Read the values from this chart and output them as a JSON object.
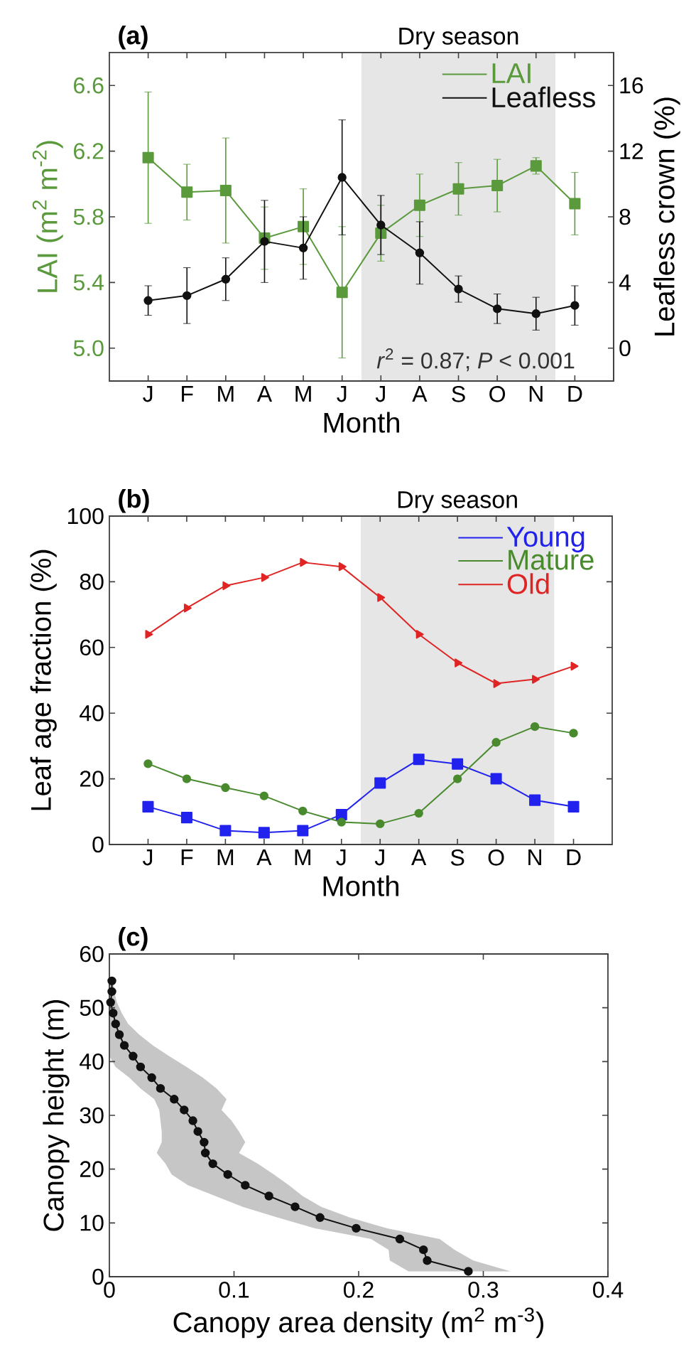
{
  "chart_data": [
    {
      "type": "line",
      "title": "(a)",
      "xlabel": "Month",
      "ylabel": "LAI (m$^{2}$ m$^{-2}$)",
      "y2label": "Leafless crown (%)",
      "categories": [
        "J",
        "F",
        "M",
        "A",
        "M",
        "J",
        "J",
        "A",
        "S",
        "O",
        "N",
        "D"
      ],
      "ylim": [
        4.8,
        6.8
      ],
      "yticks": [
        {
          "value": 5,
          "label": "5.0"
        },
        5.4,
        5.8,
        6.2,
        6.6
      ],
      "y2lim": [
        -2,
        18
      ],
      "y2ticks": [
        0,
        4,
        8,
        12,
        16
      ],
      "legend": "top right",
      "series": [
        {
          "name": "LAI",
          "color": "#5b9a3c",
          "marker": "square",
          "values": [
            6.16,
            5.95,
            5.96,
            5.67,
            5.74,
            5.34,
            5.7,
            5.87,
            5.97,
            5.99,
            6.11,
            5.88
          ],
          "errors": [
            0.4,
            0.17,
            0.32,
            0.19,
            0.23,
            0.4,
            0.17,
            0.19,
            0.16,
            0.16,
            0.05,
            0.19
          ]
        },
        {
          "name": "Leafless",
          "color": "#111111",
          "marker": "circle",
          "axis": "y2",
          "values": [
            2.9,
            3.2,
            4.2,
            6.5,
            6.1,
            10.4,
            7.5,
            5.8,
            3.6,
            2.4,
            2.1,
            2.6
          ],
          "errors": [
            0.9,
            1.7,
            1.3,
            2.5,
            1.9,
            3.5,
            1.8,
            1.9,
            0.8,
            0.9,
            1.0,
            1.2
          ]
        }
      ],
      "annotations": [
        "Dry season",
        "*r*$^{2}$ = 0.87; *P* < 0.001"
      ]
    },
    {
      "type": "line",
      "title": "(b)",
      "xlabel": "Month",
      "ylabel": "Leaf age fraction (%)",
      "categories": [
        "J",
        "F",
        "M",
        "A",
        "M",
        "J",
        "J",
        "A",
        "S",
        "O",
        "N",
        "D"
      ],
      "ylim": [
        0,
        100
      ],
      "yticks": [
        0,
        20,
        40,
        60,
        80,
        100
      ],
      "legend": "top right",
      "series": [
        {
          "name": "Young",
          "color": "#2222ee",
          "marker": "square",
          "values": [
            11.5,
            8.2,
            4.2,
            3.6,
            4.2,
            9.1,
            18.7,
            25.9,
            24.5,
            20.0,
            13.5,
            11.5
          ]
        },
        {
          "name": "Mature",
          "color": "#4a8a2e",
          "marker": "circle",
          "values": [
            24.6,
            20.0,
            17.3,
            14.8,
            10.2,
            6.8,
            6.3,
            9.5,
            20.0,
            31.1,
            35.9,
            33.9
          ]
        },
        {
          "name": "Old",
          "color": "#e02424",
          "marker": "triangle",
          "values": [
            64.0,
            72.0,
            78.8,
            81.3,
            85.9,
            84.6,
            75.2,
            64.0,
            55.3,
            49.0,
            50.3,
            54.3
          ]
        }
      ],
      "annotations": [
        "Dry season"
      ]
    },
    {
      "type": "line",
      "title": "(c)",
      "xlabel": "Canopy area density (m$^{2}$ m$^{-3}$)",
      "ylabel": "Canopy height (m)",
      "orientation": "horizontal",
      "xlim": [
        0,
        0.4
      ],
      "xticks": [
        0,
        0.1,
        0.2,
        0.3,
        0.4
      ],
      "ylim": [
        0,
        60
      ],
      "yticks": [
        0,
        10,
        20,
        30,
        40,
        50,
        60
      ],
      "x": [
        1,
        3,
        5,
        7,
        9,
        11,
        13,
        15,
        17,
        19,
        21,
        23,
        25,
        27,
        29,
        31,
        33,
        35,
        37,
        39,
        41,
        43,
        45,
        47,
        49,
        51,
        53,
        55
      ],
      "series": [
        {
          "color": "#111111",
          "marker": "circle",
          "values": [
            0.288,
            0.255,
            0.252,
            0.233,
            0.198,
            0.169,
            0.149,
            0.128,
            0.109,
            0.095,
            0.083,
            0.077,
            0.076,
            0.071,
            0.067,
            0.06,
            0.052,
            0.041,
            0.034,
            0.025,
            0.019,
            0.012,
            0.008,
            0.005,
            0.003,
            0.001,
            0.002,
            0.002
          ],
          "lower": [
            0.24,
            0.225,
            0.224,
            0.21,
            0.165,
            0.135,
            0.107,
            0.085,
            0.063,
            0.05,
            0.045,
            0.038,
            0.042,
            0.042,
            0.041,
            0.04,
            0.036,
            0.025,
            0.016,
            0.005,
            0,
            0,
            0,
            0,
            0,
            0,
            0,
            0
          ],
          "upper": [
            0.322,
            0.292,
            0.277,
            0.265,
            0.223,
            0.193,
            0.17,
            0.155,
            0.144,
            0.132,
            0.119,
            0.104,
            0.109,
            0.104,
            0.098,
            0.09,
            0.094,
            0.086,
            0.075,
            0.062,
            0.048,
            0.035,
            0.024,
            0.015,
            0.01,
            0.006,
            0.004,
            0.003
          ]
        }
      ]
    }
  ]
}
